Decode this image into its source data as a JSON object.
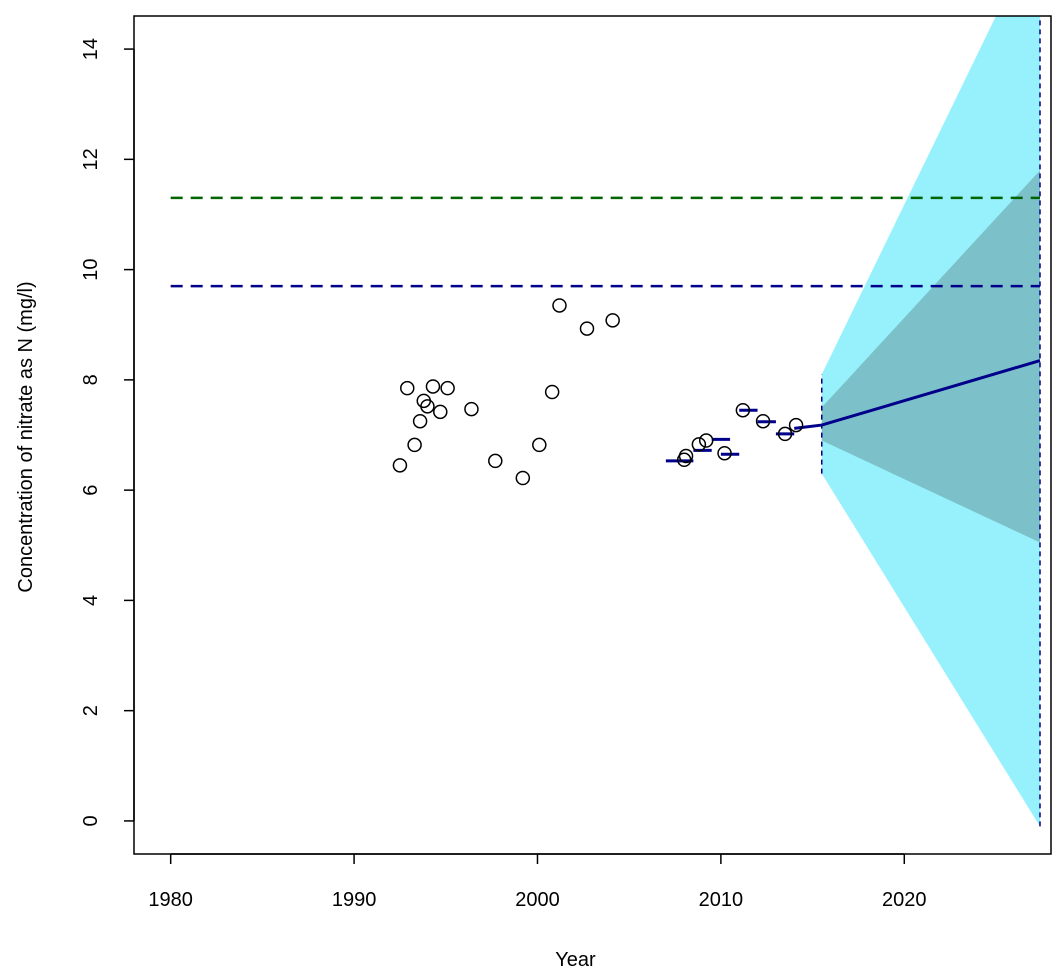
{
  "chart_data": {
    "type": "scatter",
    "title": "",
    "xlabel": "Year",
    "ylabel": "Concentration of nitrate as N (mg/l)",
    "xlim": [
      1978,
      2028
    ],
    "ylim": [
      -0.6,
      14.6
    ],
    "x_ticks": [
      1980,
      1990,
      2000,
      2010,
      2020
    ],
    "y_ticks": [
      0,
      2,
      4,
      6,
      8,
      10,
      12,
      14
    ],
    "grid": false,
    "legend": "none",
    "colors": {
      "points": "#000000",
      "trend": "#00008b",
      "threshold_upper": "#006400",
      "threshold_lower": "#00008b",
      "outer_band": "#97f1fc",
      "inner_band": "#7cc1c9"
    },
    "observations": {
      "x": [
        1992.5,
        1992.9,
        1993.3,
        1993.6,
        1993.8,
        1994.0,
        1994.3,
        1994.7,
        1995.1,
        1996.4,
        1997.7,
        1999.2,
        2000.1,
        2000.8,
        2001.2,
        2002.7,
        2004.1,
        2008.0,
        2008.1,
        2008.8,
        2009.2,
        2010.2,
        2011.2,
        2012.3,
        2013.5,
        2014.1
      ],
      "y": [
        6.45,
        7.85,
        6.82,
        7.25,
        7.62,
        7.52,
        7.88,
        7.42,
        7.85,
        7.47,
        6.53,
        6.22,
        6.82,
        7.78,
        9.35,
        8.93,
        9.08,
        6.55,
        6.62,
        6.83,
        6.9,
        6.67,
        7.45,
        7.25,
        7.02,
        7.18
      ]
    },
    "annual_means": [
      {
        "x_start": 2007.0,
        "x_end": 2008.5,
        "y": 6.53
      },
      {
        "x_start": 2008.5,
        "x_end": 2009.5,
        "y": 6.72
      },
      {
        "x_start": 2009.5,
        "x_end": 2010.5,
        "y": 6.92
      },
      {
        "x_start": 2010.0,
        "x_end": 2011.0,
        "y": 6.65
      },
      {
        "x_start": 2011.0,
        "x_end": 2012.0,
        "y": 7.45
      },
      {
        "x_start": 2012.0,
        "x_end": 2013.0,
        "y": 7.24
      },
      {
        "x_start": 2013.0,
        "x_end": 2014.0,
        "y": 7.02
      }
    ],
    "trend_line": {
      "x": [
        2014.0,
        2015.5,
        2027.4
      ],
      "y": [
        7.12,
        7.18,
        8.35
      ]
    },
    "thresholds": [
      {
        "y": 11.3,
        "x_start": 1980,
        "x_end": 2027.4,
        "color": "#006400"
      },
      {
        "y": 9.7,
        "x_start": 1980,
        "x_end": 2027.4,
        "color": "#00008b"
      }
    ],
    "forecast_bands": {
      "outer": {
        "x": [
          2015.5,
          2025.0,
          2027.4,
          2027.4,
          2015.5
        ],
        "y": [
          8.1,
          14.6,
          14.6,
          -0.1,
          6.3
        ]
      },
      "inner": {
        "x": [
          2015.5,
          2027.4,
          2027.4,
          2015.5
        ],
        "y": [
          7.5,
          11.8,
          5.05,
          6.9
        ]
      }
    },
    "vertical_markers": [
      {
        "x": 2015.5,
        "y_from": 6.3,
        "y_to": 8.1
      },
      {
        "x": 2027.4,
        "y_from": -0.1,
        "y_to": 14.6
      }
    ]
  }
}
